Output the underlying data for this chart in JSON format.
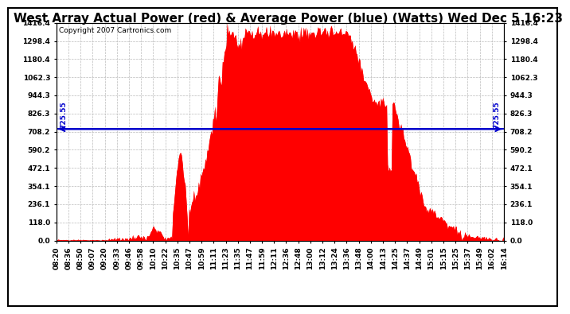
{
  "title": "West Array Actual Power (red) & Average Power (blue) (Watts) Wed Dec 5 16:23",
  "copyright": "Copyright 2007 Cartronics.com",
  "avg_power": 725.55,
  "ymax": 1416.4,
  "ymin": 0.0,
  "yticks": [
    0.0,
    118.0,
    236.1,
    354.1,
    472.1,
    590.2,
    708.2,
    826.3,
    944.3,
    1062.3,
    1180.4,
    1298.4,
    1416.4
  ],
  "bg_color": "#ffffff",
  "plot_bg": "#ffffff",
  "grid_color": "#bbbbbb",
  "bar_color": "#ff0000",
  "line_color": "#0000cc",
  "xtick_labels": [
    "08:20",
    "08:36",
    "08:50",
    "09:07",
    "09:20",
    "09:33",
    "09:46",
    "09:58",
    "10:10",
    "10:22",
    "10:35",
    "10:47",
    "10:59",
    "11:11",
    "11:23",
    "11:35",
    "11:47",
    "11:59",
    "12:11",
    "12:36",
    "12:48",
    "13:00",
    "13:12",
    "13:24",
    "13:36",
    "13:48",
    "14:00",
    "14:13",
    "14:25",
    "14:37",
    "14:49",
    "15:01",
    "15:15",
    "15:25",
    "15:37",
    "15:49",
    "16:02",
    "16:14"
  ],
  "title_fontsize": 11,
  "tick_fontsize": 6.5,
  "copyright_fontsize": 6.5
}
